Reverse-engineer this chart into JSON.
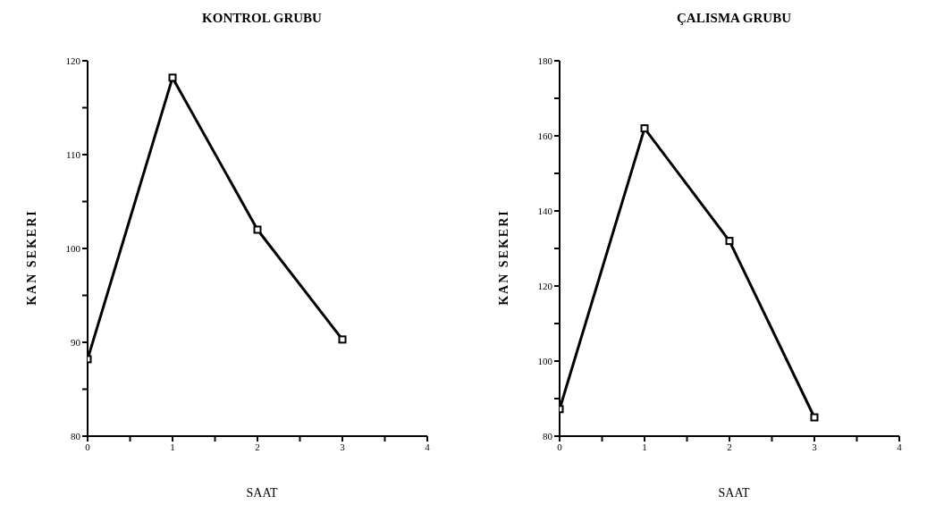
{
  "chart_data": [
    {
      "type": "line",
      "title": "KONTROL GRUBU",
      "xlabel": "SAAT",
      "ylabel": "KAN SEKERI",
      "x": [
        0,
        1,
        2,
        3
      ],
      "series": [
        {
          "color": "#000000",
          "values": [
            88.2,
            118.2,
            102,
            90.3
          ]
        }
      ],
      "xlim": [
        0,
        4
      ],
      "xticks": [
        0,
        {
          "value": 0.5,
          "label": null
        },
        1,
        {
          "value": 1.5,
          "label": null
        },
        2,
        {
          "value": 2.5,
          "label": null
        },
        3,
        {
          "value": 3.5,
          "label": null
        },
        4
      ],
      "ylim": [
        80,
        120
      ],
      "yticks": [
        80,
        {
          "value": 85,
          "label": null
        },
        90,
        {
          "value": 95,
          "label": null
        },
        100,
        {
          "value": 105,
          "label": null
        },
        110,
        {
          "value": 115,
          "label": null
        },
        120
      ],
      "marker": "square",
      "grid": false,
      "legend": false
    },
    {
      "type": "line",
      "title": "ÇALISMA GRUBU",
      "xlabel": "SAAT",
      "ylabel": "KAN SEKERI",
      "x": [
        0,
        1,
        2,
        3
      ],
      "series": [
        {
          "color": "#000000",
          "values": [
            87.2,
            162,
            132,
            85
          ]
        }
      ],
      "xlim": [
        0,
        4
      ],
      "xticks": [
        0,
        {
          "value": 0.5,
          "label": null
        },
        1,
        {
          "value": 1.5,
          "label": null
        },
        2,
        {
          "value": 2.5,
          "label": null
        },
        3,
        {
          "value": 3.5,
          "label": null
        },
        4
      ],
      "ylim": [
        80,
        180
      ],
      "yticks": [
        80,
        {
          "value": 90,
          "label": null
        },
        100,
        {
          "value": 110,
          "label": null
        },
        120,
        {
          "value": 130,
          "label": null
        },
        140,
        {
          "value": 150,
          "label": null
        },
        160,
        {
          "value": 170,
          "label": null
        },
        180
      ],
      "marker": "square",
      "grid": false,
      "legend": false
    }
  ]
}
